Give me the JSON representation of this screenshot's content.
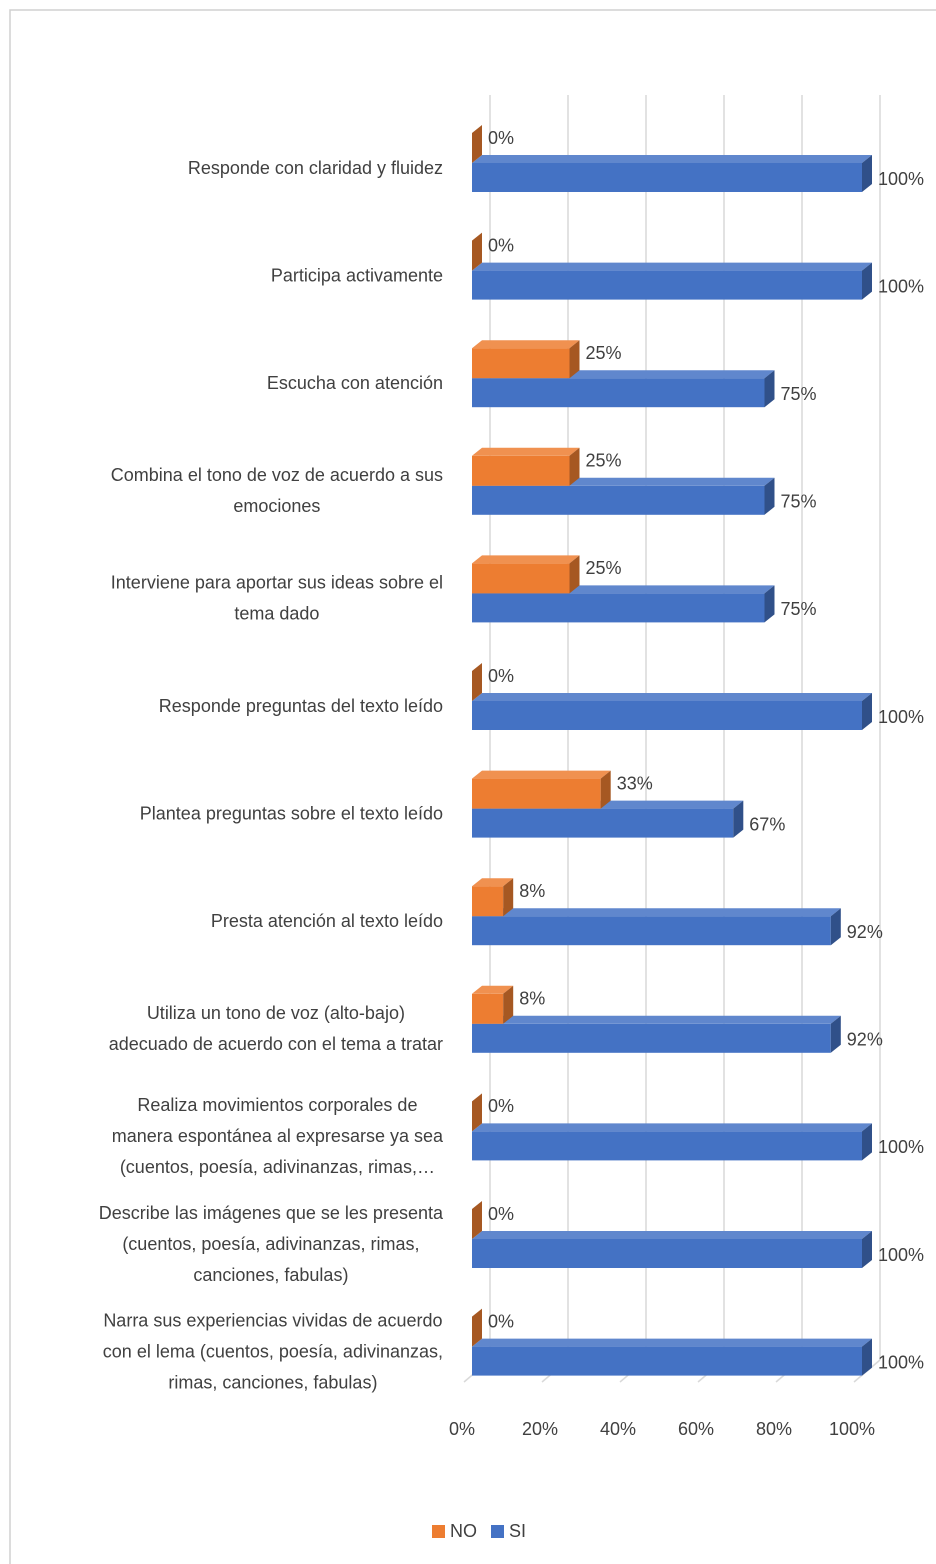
{
  "chart_data": {
    "type": "bar3d_horizontal",
    "categories": [
      [
        "Responde con claridad y fluidez"
      ],
      [
        "Participa activamente"
      ],
      [
        "Escucha con atención"
      ],
      [
        "Combina el tono de voz de acuerdo a sus",
        "emociones"
      ],
      [
        "Interviene para aportar sus ideas sobre el",
        "tema dado"
      ],
      [
        "Responde preguntas del texto leído"
      ],
      [
        "Plantea preguntas sobre el texto leído"
      ],
      [
        "Presta atención al texto leído"
      ],
      [
        "Utiliza un tono de voz (alto-bajo)",
        "adecuado de acuerdo con el tema a tratar"
      ],
      [
        "Realiza movimientos corporales de",
        "manera espontánea al expresarse ya sea",
        "(cuentos, poesía, adivinanzas, rimas,…"
      ],
      [
        "Describe las imágenes que se les presenta",
        "(cuentos, poesía, adivinanzas, rimas,",
        "canciones, fabulas)"
      ],
      [
        "Narra sus experiencias vividas de acuerdo",
        "con el lema (cuentos, poesía, adivinanzas,",
        "rimas, canciones, fabulas)"
      ]
    ],
    "series": [
      {
        "name": "NO",
        "color": "#ed7d31",
        "values": [
          0,
          0,
          25,
          25,
          25,
          0,
          33,
          8,
          8,
          0,
          0,
          0
        ],
        "value_labels": [
          "0%",
          "0%",
          "25%",
          "25%",
          "25%",
          "0%",
          "33%",
          "8%",
          "8%",
          "0%",
          "0%",
          "0%"
        ]
      },
      {
        "name": "SI",
        "color": "#4472c4",
        "values": [
          100,
          100,
          75,
          75,
          75,
          100,
          67,
          92,
          92,
          100,
          100,
          100
        ],
        "value_labels": [
          "100%",
          "100%",
          "75%",
          "75%",
          "75%",
          "100%",
          "67%",
          "92%",
          "92%",
          "100%",
          "100%",
          "100%"
        ]
      }
    ],
    "xlim": [
      0,
      100
    ],
    "xticks": [
      {
        "value": 0,
        "label": "0%"
      },
      {
        "value": 20,
        "label": "20%"
      },
      {
        "value": 40,
        "label": "40%"
      },
      {
        "value": 60,
        "label": "60%"
      },
      {
        "value": 80,
        "label": "80%"
      },
      {
        "value": 100,
        "label": "100%"
      }
    ],
    "grid": true,
    "legend": "bottom"
  }
}
